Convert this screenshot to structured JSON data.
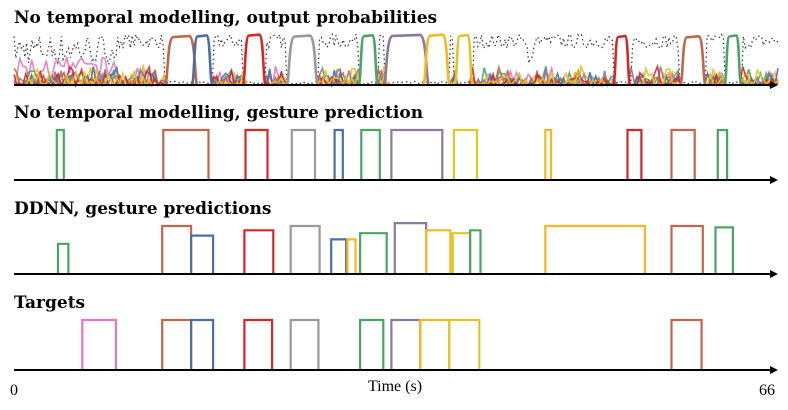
{
  "chart_data": {
    "type": "line",
    "xlabel": "Time (s)",
    "x_ticks": [
      "0",
      "66"
    ],
    "xlim": [
      0,
      66
    ],
    "ylim": [
      0,
      1
    ],
    "colors": {
      "pink": "#e377c2",
      "brown": "#c0664a",
      "blue": "#4a6fa5",
      "red": "#d62728",
      "gray": "#999999",
      "green": "#4aa466",
      "purple": "#8c7a99",
      "orange": "#f5b820",
      "yellow": "#e0c624",
      "noise": "#333333"
    },
    "panels": [
      {
        "title": "No temporal modelling, output probabilities",
        "kind": "probabilities",
        "segments": [
          {
            "color": "brown",
            "start": 13.3,
            "end": 15.6
          },
          {
            "color": "blue",
            "start": 15.6,
            "end": 16.9
          },
          {
            "color": "red",
            "start": 20.0,
            "end": 21.5
          },
          {
            "color": "gray",
            "start": 23.8,
            "end": 26.0
          },
          {
            "color": "green",
            "start": 30.0,
            "end": 31.2
          },
          {
            "color": "purple",
            "start": 32.2,
            "end": 35.6
          },
          {
            "color": "orange",
            "start": 35.6,
            "end": 37.4
          },
          {
            "color": "yellow",
            "start": 38.3,
            "end": 39.4
          },
          {
            "color": "red",
            "start": 52.0,
            "end": 53.0
          },
          {
            "color": "brown",
            "start": 57.8,
            "end": 59.5
          },
          {
            "color": "green",
            "start": 61.6,
            "end": 62.6
          }
        ]
      },
      {
        "title": "No temporal modelling, gesture prediction",
        "kind": "steps",
        "segments": [
          {
            "color": "green",
            "start": 3.7,
            "end": 4.3,
            "level": 1.0
          },
          {
            "color": "brown",
            "start": 12.9,
            "end": 16.8,
            "level": 1.0
          },
          {
            "color": "red",
            "start": 20.0,
            "end": 21.9,
            "level": 1.0
          },
          {
            "color": "gray",
            "start": 24.0,
            "end": 26.0,
            "level": 1.0
          },
          {
            "color": "blue",
            "start": 27.7,
            "end": 28.4,
            "level": 1.0
          },
          {
            "color": "green",
            "start": 30.0,
            "end": 31.6,
            "level": 1.0
          },
          {
            "color": "purple",
            "start": 32.6,
            "end": 37.0,
            "level": 1.0
          },
          {
            "color": "yellow",
            "start": 38.0,
            "end": 40.0,
            "level": 1.0
          },
          {
            "color": "orange",
            "start": 45.9,
            "end": 46.4,
            "level": 1.0
          },
          {
            "color": "red",
            "start": 53.0,
            "end": 54.2,
            "level": 1.0
          },
          {
            "color": "brown",
            "start": 56.8,
            "end": 58.8,
            "level": 1.0
          },
          {
            "color": "green",
            "start": 60.8,
            "end": 61.6,
            "level": 1.0
          }
        ]
      },
      {
        "title": "DDNN, gesture predictions",
        "kind": "steps",
        "segments": [
          {
            "color": "green",
            "start": 3.8,
            "end": 4.7,
            "level": 0.63
          },
          {
            "color": "brown",
            "start": 12.8,
            "end": 15.3,
            "level": 1.0
          },
          {
            "color": "blue",
            "start": 15.3,
            "end": 17.2,
            "level": 0.8
          },
          {
            "color": "red",
            "start": 19.9,
            "end": 22.4,
            "level": 0.91
          },
          {
            "color": "gray",
            "start": 23.9,
            "end": 26.4,
            "level": 1.0
          },
          {
            "color": "blue",
            "start": 27.4,
            "end": 28.7,
            "level": 0.72
          },
          {
            "color": "orange",
            "start": 28.8,
            "end": 29.5,
            "level": 0.72
          },
          {
            "color": "green",
            "start": 29.9,
            "end": 32.2,
            "level": 0.85
          },
          {
            "color": "purple",
            "start": 32.9,
            "end": 35.6,
            "level": 1.06
          },
          {
            "color": "orange",
            "start": 35.6,
            "end": 37.7,
            "level": 0.91
          },
          {
            "color": "yellow",
            "start": 37.9,
            "end": 39.4,
            "level": 0.85
          },
          {
            "color": "green",
            "start": 39.4,
            "end": 40.3,
            "level": 0.91
          },
          {
            "color": "orange",
            "start": 45.9,
            "end": 54.5,
            "level": 1.0
          },
          {
            "color": "brown",
            "start": 56.8,
            "end": 59.5,
            "level": 1.0
          },
          {
            "color": "green",
            "start": 60.6,
            "end": 62.1,
            "level": 0.97
          }
        ]
      },
      {
        "title": "Targets",
        "kind": "steps",
        "segments": [
          {
            "color": "pink",
            "start": 5.9,
            "end": 8.8,
            "level": 1.0
          },
          {
            "color": "brown",
            "start": 12.8,
            "end": 15.3,
            "level": 1.0
          },
          {
            "color": "blue",
            "start": 15.3,
            "end": 17.2,
            "level": 1.0
          },
          {
            "color": "red",
            "start": 19.9,
            "end": 22.3,
            "level": 1.0
          },
          {
            "color": "gray",
            "start": 23.9,
            "end": 26.3,
            "level": 1.0
          },
          {
            "color": "green",
            "start": 29.9,
            "end": 31.9,
            "level": 1.0
          },
          {
            "color": "purple",
            "start": 32.6,
            "end": 35.1,
            "level": 1.0
          },
          {
            "color": "orange",
            "start": 35.1,
            "end": 37.6,
            "level": 1.0
          },
          {
            "color": "yellow",
            "start": 37.6,
            "end": 40.2,
            "level": 1.0
          },
          {
            "color": "brown",
            "start": 56.8,
            "end": 59.4,
            "level": 1.0
          }
        ]
      }
    ]
  }
}
